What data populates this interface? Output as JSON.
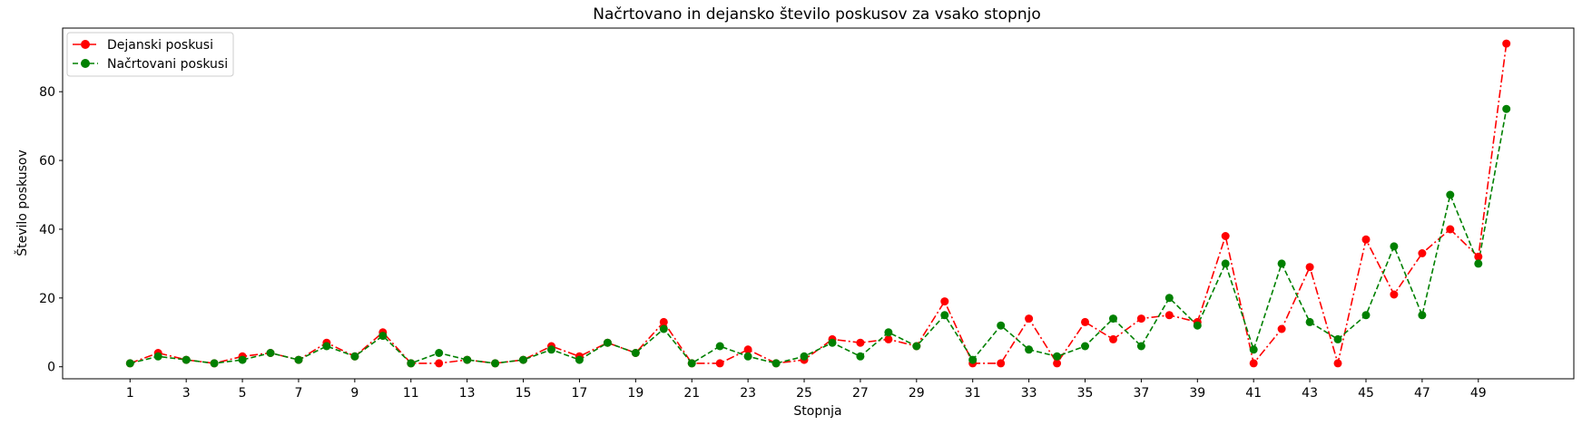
{
  "chart_data": {
    "type": "line",
    "title": "Načrtovano in dejansko število poskusov za vsako stopnjo",
    "xlabel": "Stopnja",
    "ylabel": "Število poskusov",
    "xlim": [
      -1.4,
      52.4
    ],
    "ylim": [
      -3.5,
      98.5
    ],
    "x_ticks": [
      1,
      3,
      5,
      7,
      9,
      11,
      13,
      15,
      17,
      19,
      21,
      23,
      25,
      27,
      29,
      31,
      33,
      35,
      37,
      39,
      41,
      43,
      45,
      47,
      49
    ],
    "y_ticks": [
      0,
      20,
      40,
      60,
      80
    ],
    "grid": false,
    "legend_position": "top-left",
    "x": [
      1,
      2,
      3,
      4,
      5,
      6,
      7,
      8,
      9,
      10,
      11,
      12,
      13,
      14,
      15,
      16,
      17,
      18,
      19,
      20,
      21,
      22,
      23,
      24,
      25,
      26,
      27,
      28,
      29,
      30,
      31,
      32,
      33,
      34,
      35,
      36,
      37,
      38,
      39,
      40,
      41,
      42,
      43,
      44,
      45,
      46,
      47,
      48,
      49,
      50
    ],
    "series": [
      {
        "name": "Dejanski poskusi",
        "color": "#ff0000",
        "line_style": "dashdot",
        "marker": "circle",
        "values": [
          1,
          4,
          2,
          1,
          3,
          4,
          2,
          7,
          3,
          10,
          1,
          1,
          2,
          1,
          2,
          6,
          3,
          7,
          4,
          13,
          1,
          1,
          5,
          1,
          2,
          8,
          7,
          8,
          6,
          19,
          1,
          1,
          14,
          1,
          13,
          8,
          14,
          15,
          13,
          38,
          1,
          11,
          29,
          1,
          37,
          21,
          33,
          40,
          32,
          94
        ]
      },
      {
        "name": "Načrtovani poskusi",
        "color": "#008000",
        "line_style": "dashed",
        "marker": "circle",
        "values": [
          1,
          3,
          2,
          1,
          2,
          4,
          2,
          6,
          3,
          9,
          1,
          4,
          2,
          1,
          2,
          5,
          2,
          7,
          4,
          11,
          1,
          6,
          3,
          1,
          3,
          7,
          3,
          10,
          6,
          15,
          2,
          12,
          5,
          3,
          6,
          14,
          6,
          20,
          12,
          30,
          5,
          30,
          13,
          8,
          15,
          35,
          15,
          50,
          30,
          75
        ]
      }
    ]
  }
}
